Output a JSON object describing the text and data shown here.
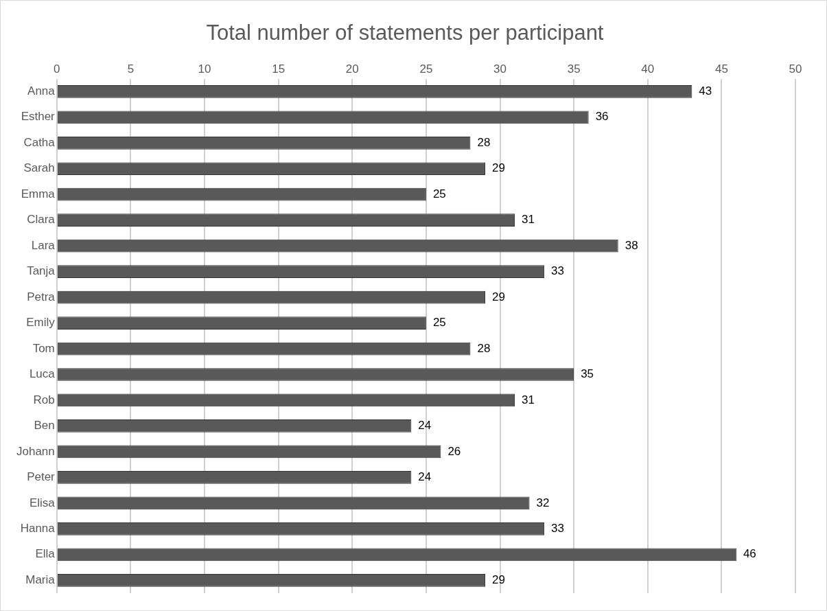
{
  "chart_data": {
    "type": "bar",
    "orientation": "horizontal",
    "title": "Total number of statements per participant",
    "categories": [
      "Anna",
      "Esther",
      "Catha",
      "Sarah",
      "Emma",
      "Clara",
      "Lara",
      "Tanja",
      "Petra",
      "Emily",
      "Tom",
      "Luca",
      "Rob",
      "Ben",
      "Johann",
      "Peter",
      "Elisa",
      "Hanna",
      "Ella",
      "Maria"
    ],
    "values": [
      43,
      36,
      28,
      29,
      25,
      31,
      38,
      33,
      29,
      25,
      28,
      35,
      31,
      24,
      26,
      24,
      32,
      33,
      46,
      29
    ],
    "color": "#595959",
    "xlim": [
      0,
      50
    ],
    "xticks": [
      0,
      5,
      10,
      15,
      20,
      25,
      30,
      35,
      40,
      45,
      50
    ],
    "grid": "x",
    "data_labels": true
  }
}
